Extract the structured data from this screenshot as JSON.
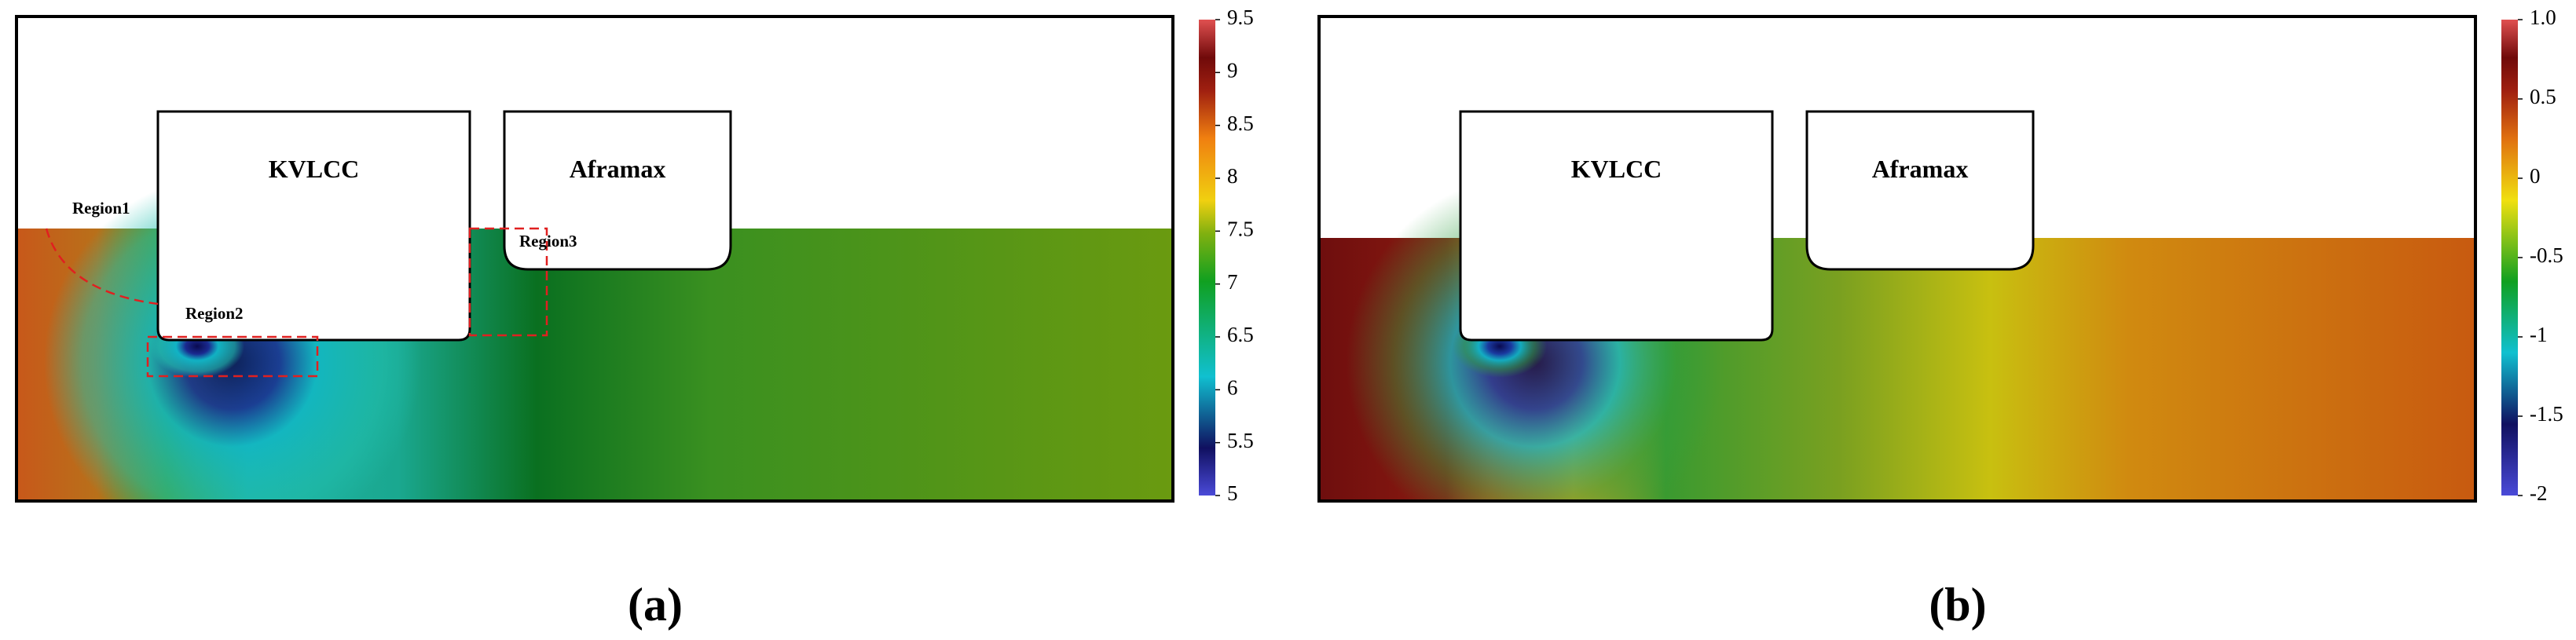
{
  "panels": [
    {
      "label": "(a)",
      "ships": [
        "KVLCC",
        "Aframax"
      ],
      "regions": [
        "Region1",
        "Region2",
        "Region3"
      ],
      "colorbar": {
        "lim": [
          5,
          9.5
        ],
        "ticks": [
          9.5,
          9,
          8.5,
          8,
          7.5,
          7,
          6.5,
          6,
          5.5,
          5
        ]
      }
    },
    {
      "label": "(b)",
      "ships": [
        "KVLCC",
        "Aframax"
      ],
      "colorbar": {
        "lim": [
          -2,
          1
        ],
        "ticks": [
          {
            "value": 1,
            "label": "1.0"
          },
          0.5,
          0,
          -0.5,
          -1,
          -1.5,
          -2
        ]
      }
    }
  ]
}
